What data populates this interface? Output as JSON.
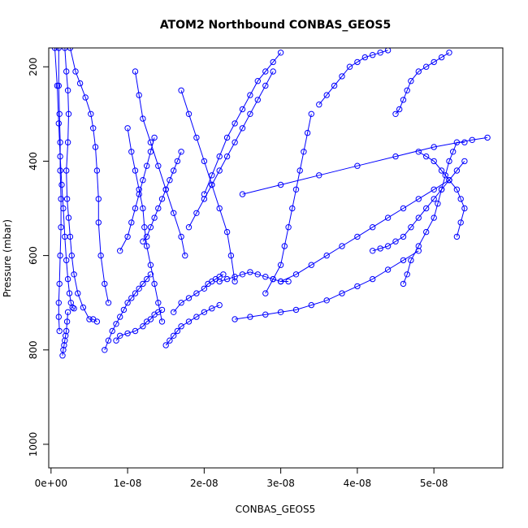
{
  "chart_data": {
    "type": "line",
    "title": "ATOM2 Northbound CONBAS_GEOS5",
    "xlabel": "CONBAS_GEOS5",
    "ylabel": "Pressure (mbar)",
    "xlim": [
      -3e-10,
      5.9e-08
    ],
    "ylim": [
      1050,
      160
    ],
    "x_ticks": [
      0,
      1e-08,
      2e-08,
      3e-08,
      4e-08,
      5e-08
    ],
    "x_tick_labels": [
      "0e+00",
      "1e-08",
      "2e-08",
      "3e-08",
      "4e-08",
      "5e-08"
    ],
    "y_ticks": [
      200,
      400,
      600,
      800,
      1000
    ],
    "y_tick_labels": [
      "200",
      "400",
      "600",
      "800",
      "1000"
    ],
    "marker": "open-circle",
    "line_color": "#0000ff",
    "series": [
      {
        "x": [
          1.5e-09,
          1.6e-09,
          1.7e-09,
          1.8e-09,
          1.9e-09,
          2e-09,
          2.1e-09,
          2.2e-09
        ],
        "y": [
          812,
          800,
          790,
          780,
          770,
          760,
          740,
          720
        ]
      },
      {
        "x": [
          1e-09,
          1e-09,
          1.1e-09,
          1.2e-09,
          1.2e-09,
          1.3e-09,
          1.3e-09,
          1.2e-09,
          1.1e-09,
          1e-09,
          1e-09,
          1.1e-09
        ],
        "y": [
          160,
          240,
          300,
          360,
          420,
          480,
          540,
          600,
          660,
          700,
          730,
          760
        ]
      },
      {
        "x": [
          1.8e-09,
          2e-09,
          2.2e-09,
          2.3e-09,
          2.2e-09,
          2e-09,
          2.1e-09,
          2.3e-09,
          2.5e-09,
          2.7e-09,
          3e-09,
          3.5e-09,
          4.2e-09,
          5e-09,
          5.5e-09,
          6e-09
        ],
        "y": [
          160,
          210,
          250,
          300,
          360,
          420,
          480,
          520,
          560,
          600,
          640,
          680,
          710,
          735,
          735,
          740
        ]
      },
      {
        "x": [
          2.5e-09,
          3.2e-09,
          3.8e-09,
          4.5e-09,
          5.2e-09,
          5.5e-09,
          5.8e-09,
          6e-09,
          6.2e-09,
          6.2e-09,
          6.5e-09,
          7e-09,
          7.5e-09
        ],
        "y": [
          160,
          210,
          235,
          265,
          300,
          330,
          370,
          420,
          480,
          530,
          600,
          660,
          700
        ]
      },
      {
        "x": [
          7e-09,
          7.5e-09,
          8e-09,
          8.5e-09,
          9e-09,
          9.5e-09,
          1e-08,
          1.05e-08,
          1.1e-08,
          1.15e-08,
          1.2e-08,
          1.25e-08,
          1.3e-08
        ],
        "y": [
          800,
          780,
          760,
          745,
          730,
          715,
          700,
          690,
          680,
          670,
          660,
          650,
          640
        ]
      },
      {
        "x": [
          8.5e-09,
          9e-09,
          1e-08,
          1.1e-08,
          1.2e-08,
          1.25e-08,
          1.3e-08,
          1.35e-08,
          1.4e-08,
          1.45e-08
        ],
        "y": [
          780,
          770,
          765,
          760,
          750,
          740,
          735,
          725,
          720,
          715
        ]
      },
      {
        "x": [
          1e-08,
          1.05e-08,
          1.1e-08,
          1.15e-08,
          1.2e-08,
          1.22e-08,
          1.25e-08,
          1.3e-08,
          1.35e-08,
          1.4e-08,
          1.45e-08
        ],
        "y": [
          330,
          380,
          420,
          460,
          500,
          540,
          580,
          620,
          660,
          700,
          740
        ]
      },
      {
        "x": [
          1.1e-08,
          1.15e-08,
          1.2e-08,
          1.3e-08,
          1.4e-08,
          1.5e-08,
          1.6e-08,
          1.7e-08,
          1.75e-08
        ],
        "y": [
          210,
          260,
          310,
          360,
          410,
          460,
          510,
          560,
          600
        ]
      },
      {
        "x": [
          1.5e-08,
          1.55e-08,
          1.6e-08,
          1.65e-08,
          1.7e-08,
          1.8e-08,
          1.9e-08,
          2e-08,
          2.1e-08,
          2.2e-08
        ],
        "y": [
          790,
          780,
          770,
          760,
          750,
          740,
          730,
          720,
          712,
          705
        ]
      },
      {
        "x": [
          1.6e-08,
          1.7e-08,
          1.8e-08,
          1.9e-08,
          2e-08,
          2.05e-08,
          2.1e-08,
          2.15e-08,
          2.2e-08,
          2.25e-08
        ],
        "y": [
          720,
          700,
          690,
          680,
          670,
          660,
          655,
          650,
          645,
          640
        ]
      },
      {
        "x": [
          1.7e-08,
          1.8e-08,
          1.9e-08,
          2e-08,
          2.1e-08,
          2.2e-08,
          2.3e-08,
          2.35e-08,
          2.4e-08
        ],
        "y": [
          250,
          300,
          350,
          400,
          450,
          500,
          550,
          600,
          655
        ]
      },
      {
        "x": [
          2e-08,
          2.1e-08,
          2.2e-08,
          2.3e-08,
          2.4e-08,
          2.5e-08,
          2.6e-08,
          2.7e-08,
          2.8e-08,
          2.9e-08,
          3e-08
        ],
        "y": [
          470,
          430,
          390,
          350,
          320,
          290,
          260,
          230,
          210,
          190,
          170
        ]
      },
      {
        "x": [
          2.2e-08,
          2.3e-08,
          2.4e-08,
          2.5e-08,
          2.6e-08,
          2.7e-08,
          2.8e-08,
          2.9e-08,
          3e-08,
          3.1e-08
        ],
        "y": [
          655,
          650,
          645,
          640,
          635,
          640,
          645,
          650,
          655,
          655
        ]
      },
      {
        "x": [
          2.4e-08,
          2.6e-08,
          2.8e-08,
          3e-08,
          3.2e-08,
          3.4e-08,
          3.6e-08,
          3.8e-08,
          4e-08,
          4.2e-08,
          4.4e-08,
          4.6e-08,
          4.8e-08
        ],
        "y": [
          735,
          730,
          725,
          720,
          715,
          705,
          695,
          680,
          665,
          650,
          630,
          610,
          590
        ]
      },
      {
        "x": [
          2.8e-08,
          2.9e-08,
          3e-08,
          3.05e-08,
          3.1e-08,
          3.15e-08,
          3.2e-08,
          3.25e-08,
          3.3e-08,
          3.35e-08,
          3.4e-08
        ],
        "y": [
          680,
          650,
          620,
          580,
          540,
          500,
          460,
          420,
          380,
          340,
          300
        ]
      },
      {
        "x": [
          3e-08,
          3.2e-08,
          3.4e-08,
          3.6e-08,
          3.8e-08,
          4e-08,
          4.2e-08,
          4.4e-08,
          4.6e-08,
          4.8e-08,
          5e-08,
          5.2e-08
        ],
        "y": [
          655,
          640,
          620,
          600,
          580,
          560,
          540,
          520,
          500,
          480,
          460,
          440
        ]
      },
      {
        "x": [
          4.2e-08,
          4.3e-08,
          4.4e-08,
          4.5e-08,
          4.6e-08,
          4.7e-08,
          4.8e-08,
          4.9e-08,
          5e-08,
          5.1e-08,
          5.2e-08,
          5.3e-08,
          5.4e-08
        ],
        "y": [
          590,
          585,
          580,
          570,
          560,
          540,
          520,
          500,
          480,
          460,
          440,
          420,
          400
        ]
      },
      {
        "x": [
          4.6e-08,
          4.65e-08,
          4.7e-08,
          4.8e-08,
          4.9e-08,
          5e-08,
          5.05e-08,
          5.1e-08,
          5.15e-08,
          5.2e-08,
          5.25e-08,
          5.3e-08,
          5.4e-08
        ],
        "y": [
          660,
          640,
          610,
          580,
          550,
          520,
          490,
          460,
          430,
          400,
          380,
          360,
          360
        ]
      },
      {
        "x": [
          4.5e-08,
          4.55e-08,
          4.6e-08,
          4.65e-08,
          4.7e-08,
          4.8e-08,
          4.9e-08,
          5e-08,
          5.1e-08,
          5.2e-08
        ],
        "y": [
          300,
          290,
          270,
          250,
          230,
          210,
          200,
          190,
          180,
          170
        ]
      },
      {
        "x": [
          2.5e-08,
          3e-08,
          3.5e-08,
          4e-08,
          4.5e-08,
          5e-08,
          5.5e-08,
          5.7e-08
        ],
        "y": [
          470,
          450,
          430,
          410,
          390,
          370,
          355,
          350
        ]
      },
      {
        "x": [
          4.8e-08,
          4.9e-08,
          5e-08,
          5.1e-08,
          5.2e-08,
          5.3e-08,
          5.35e-08,
          5.4e-08,
          5.35e-08,
          5.3e-08
        ],
        "y": [
          380,
          390,
          400,
          420,
          440,
          460,
          480,
          500,
          530,
          560
        ]
      },
      {
        "x": [
          3.5e-08,
          3.6e-08,
          3.7e-08,
          3.8e-08,
          3.9e-08,
          4e-08,
          4.1e-08,
          4.2e-08,
          4.3e-08,
          4.4e-08
        ],
        "y": [
          280,
          260,
          240,
          220,
          200,
          190,
          180,
          175,
          170,
          165
        ]
      },
      {
        "x": [
          1.8e-08,
          1.9e-08,
          2e-08,
          2.1e-08,
          2.2e-08,
          2.3e-08,
          2.4e-08,
          2.5e-08,
          2.6e-08,
          2.7e-08,
          2.8e-08,
          2.9e-08
        ],
        "y": [
          540,
          510,
          480,
          450,
          420,
          390,
          360,
          330,
          300,
          270,
          240,
          210
        ]
      },
      {
        "x": [
          1.2e-08,
          1.25e-08,
          1.3e-08,
          1.35e-08,
          1.4e-08,
          1.45e-08,
          1.5e-08,
          1.55e-08,
          1.6e-08,
          1.65e-08,
          1.7e-08
        ],
        "y": [
          570,
          560,
          540,
          520,
          500,
          480,
          460,
          440,
          420,
          400,
          380
        ]
      },
      {
        "x": [
          9e-09,
          1e-08,
          1.05e-08,
          1.1e-08,
          1.15e-08,
          1.2e-08,
          1.25e-08,
          1.3e-08,
          1.35e-08
        ],
        "y": [
          590,
          560,
          530,
          500,
          470,
          440,
          410,
          380,
          350
        ]
      },
      {
        "x": [
          5e-10,
          8e-10,
          1e-09,
          1.2e-09,
          1.4e-09,
          1.6e-09,
          1.8e-09,
          2e-09,
          2.2e-09,
          2.4e-09,
          2.6e-09,
          2.8e-09,
          3e-09
        ],
        "y": [
          160,
          240,
          320,
          390,
          450,
          500,
          560,
          610,
          650,
          680,
          700,
          710,
          712
        ]
      }
    ]
  }
}
